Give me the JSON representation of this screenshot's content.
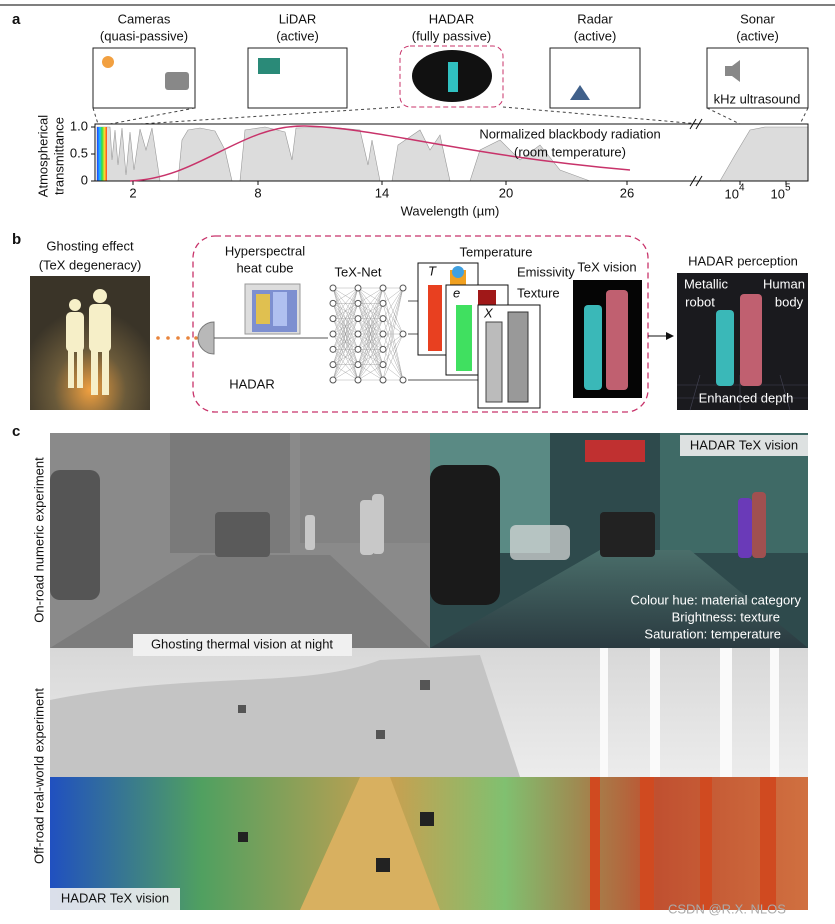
{
  "panel_a": {
    "label": "a",
    "sensors": [
      {
        "name": "Cameras",
        "mode": "(quasi-passive)"
      },
      {
        "name": "LiDAR",
        "mode": "(active)"
      },
      {
        "name": "HADAR",
        "mode": "(fully passive)"
      },
      {
        "name": "Radar",
        "mode": "(active)"
      },
      {
        "name": "Sonar",
        "mode": "(active)"
      }
    ],
    "sonar_caption": "kHz ultrasound",
    "y_label": [
      "Atmospherical",
      "transmittance"
    ],
    "yticks": [
      "1.0",
      "0.5",
      "0"
    ],
    "xticks": [
      "2",
      "8",
      "14",
      "20",
      "26"
    ],
    "xticks_log": [
      {
        "base": "10",
        "exp": "4"
      },
      {
        "base": "10",
        "exp": "5"
      }
    ],
    "x_label": "Wavelength (µm)",
    "annotation": [
      "Normalized blackbody radiation",
      "(room temperature)"
    ]
  },
  "panel_b": {
    "label": "b",
    "ghosting": [
      "Ghosting effect",
      "(TeX degeneracy)"
    ],
    "cube": [
      "Hyperspectral",
      "heat cube"
    ],
    "net": "TeX-Net",
    "hadar": "HADAR",
    "temperature": "Temperature",
    "t_symbol": "T",
    "emissivity": "Emissivity",
    "e_symbol": "e",
    "texture": "Texture",
    "x_symbol": "X",
    "tex_vision": "TeX vision",
    "perception": "HADAR perception",
    "metallic": [
      "Metallic",
      "robot"
    ],
    "human": [
      "Human",
      "body"
    ],
    "depth": "Enhanced depth"
  },
  "panel_c": {
    "label": "c",
    "row_labels": [
      "On-road numeric experiment",
      "Off-road real-world experiment"
    ],
    "tex_tag_top": "HADAR TeX vision",
    "legend": [
      "Colour hue: material category",
      "Brightness: texture",
      "Saturation: temperature"
    ],
    "ghosting_tag": "Ghosting thermal vision at night",
    "tex_tag_bottom": "HADAR TeX vision"
  },
  "watermark": "CSDN @R.X. NLOS"
}
